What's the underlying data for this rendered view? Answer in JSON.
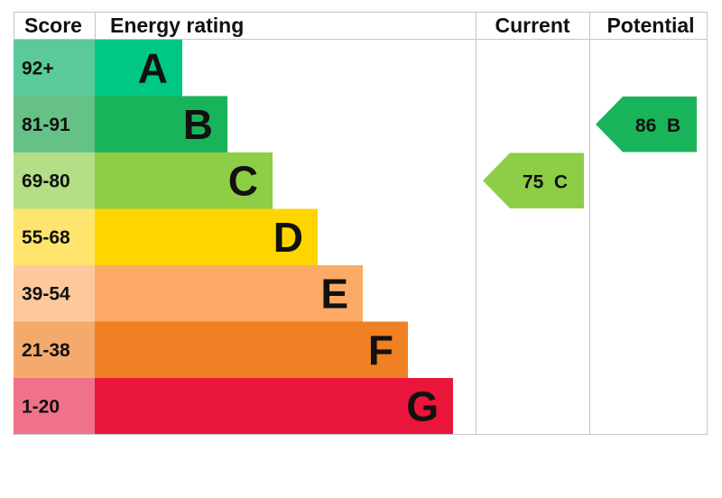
{
  "chart_data": {
    "type": "bar",
    "headers": {
      "score": "Score",
      "rating": "Energy rating",
      "current": "Current",
      "potential": "Potential"
    },
    "bands": [
      {
        "score": "92+",
        "letter": "A",
        "color": "#00c781",
        "score_bg": "#5cc99b"
      },
      {
        "score": "81-91",
        "letter": "B",
        "color": "#19b459",
        "score_bg": "#65c185"
      },
      {
        "score": "69-80",
        "letter": "C",
        "color": "#8dce46",
        "score_bg": "#b3de86"
      },
      {
        "score": "55-68",
        "letter": "D",
        "color": "#ffd500",
        "score_bg": "#ffe46d"
      },
      {
        "score": "39-54",
        "letter": "E",
        "color": "#fcaa65",
        "score_bg": "#fdc99c"
      },
      {
        "score": "21-38",
        "letter": "F",
        "color": "#ef8023",
        "score_bg": "#f4aa6c"
      },
      {
        "score": "1-20",
        "letter": "G",
        "color": "#e9153b",
        "score_bg": "#f0728a"
      }
    ],
    "current": {
      "value": 75,
      "letter": "C",
      "text": "75  C",
      "color": "#8dce46"
    },
    "potential": {
      "value": 86,
      "letter": "B",
      "text": "86  B",
      "color": "#19b459"
    }
  }
}
